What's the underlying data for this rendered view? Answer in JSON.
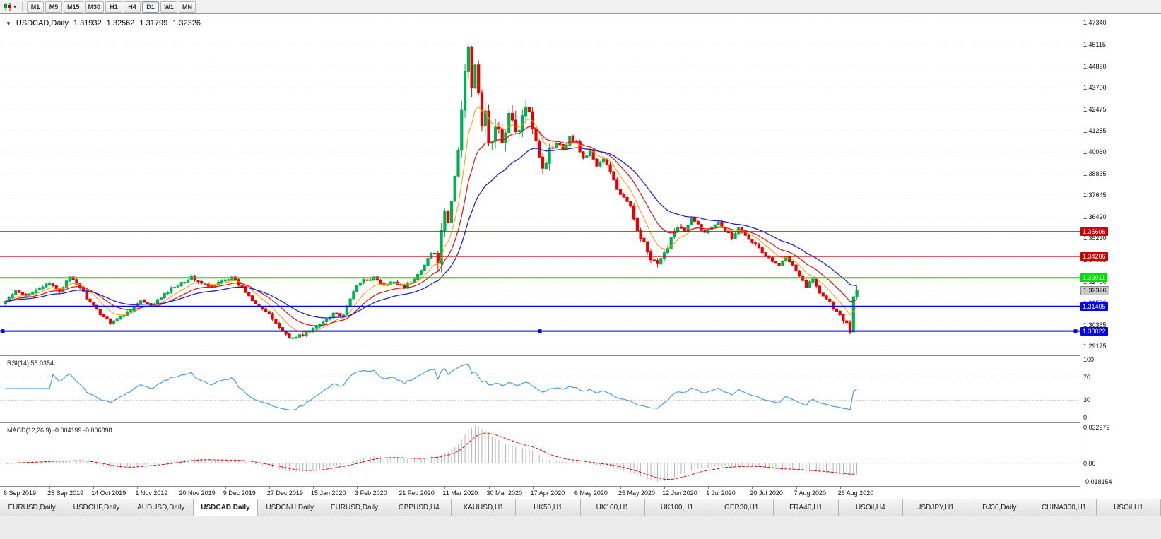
{
  "toolbar": {
    "timeframes": [
      "M1",
      "M5",
      "M15",
      "M30",
      "H1",
      "H4",
      "D1",
      "W1",
      "MN"
    ],
    "active_timeframe": "D1"
  },
  "icons": {
    "chart_type": "candlestick-chart",
    "dropdown": "▾",
    "collapse": "▼"
  },
  "header": {
    "symbol_period": "USDCAD,Daily",
    "open": "1.31932",
    "high": "1.32562",
    "low": "1.31799",
    "close": "1.32326"
  },
  "price_scale": {
    "labels": [
      "1.47340",
      "1.46115",
      "1.44890",
      "1.43700",
      "1.42475",
      "1.41285",
      "1.40060",
      "1.38835",
      "1.37645",
      "1.36420",
      "1.35230",
      "1.34005",
      "1.32780",
      "1.31590",
      "1.30365",
      "1.29175"
    ],
    "current_price": "1.32326",
    "current_badge_color": "#c9c9c9"
  },
  "indicators": {
    "rsi": {
      "label": "RSI(14) 55.0354",
      "period": 14,
      "value": 55.0354,
      "levels": [
        100,
        70,
        30,
        0
      ],
      "line_color": "#4a9ee0"
    },
    "macd": {
      "label": "MACD(12,26,9) -0.004199 -0.006898",
      "params": [
        12,
        26,
        9
      ],
      "macd_value": -0.004199,
      "signal_value": -0.006898,
      "scale_top": "0.032972",
      "scale_zero": "0.00",
      "scale_bottom": "-0.018154",
      "histogram_color": "#b2b2b2",
      "signal_color": "#e00000"
    }
  },
  "date_axis": [
    "6 Sep 2019",
    "25 Sep 2019",
    "14 Oct 2019",
    "1 Nov 2019",
    "20 Nov 2019",
    "9 Dec 2019",
    "27 Dec 2019",
    "15 Jan 2020",
    "3 Feb 2020",
    "21 Feb 2020",
    "11 Mar 2020",
    "30 Mar 2020",
    "17 Apr 2020",
    "6 May 2020",
    "25 May 2020",
    "12 Jun 2020",
    "1 Jul 2020",
    "20 Jul 2020",
    "7 Aug 2020",
    "26 Aug 2020"
  ],
  "tabs": {
    "items": [
      "EURUSD,Daily",
      "USDCHF,Daily",
      "AUDUSD,Daily",
      "USDCAD,Daily",
      "USDCNH,Daily",
      "EURUSD,Daily",
      "GBPUSD,H4",
      "XAUUSD,H1",
      "HK50,H1",
      "UK100,H1",
      "UK100,H1",
      "GER30,H1",
      "FRA40,H1",
      "USOil,H4",
      "USDJPY,H1",
      "DJ30,Daily",
      "CHINA300,H1",
      "USOil,H1"
    ],
    "active_index": 3
  },
  "chart_data": {
    "type": "candlestick",
    "symbol": "USDCAD",
    "period": "Daily",
    "ylim": [
      1.287,
      1.4777
    ],
    "num_candles": 253,
    "current_ohlc": {
      "open": 1.31932,
      "high": 1.32562,
      "low": 1.31799,
      "close": 1.32326
    },
    "up_color": "#00b050",
    "down_color": "#e80000",
    "ma_lines": [
      {
        "name": "MA fast",
        "period": 8,
        "color": "#ff9900",
        "width": 1
      },
      {
        "name": "MA medium",
        "period": 16,
        "color": "#dd1111",
        "width": 1.2
      },
      {
        "name": "MA slow",
        "period": 30,
        "color": "#2222cc",
        "width": 1.3
      }
    ],
    "hlines": [
      {
        "price": 1.35606,
        "label": "1.35606",
        "color": "#cc0000",
        "width": 1,
        "selected": false
      },
      {
        "price": 1.34206,
        "label": "1.34206",
        "color": "#cc0000",
        "width": 1,
        "selected": false
      },
      {
        "price": 1.33011,
        "label": "1.33011",
        "color": "#00dd00",
        "width": 2,
        "selected": false
      },
      {
        "price": 1.31405,
        "label": "1.31405",
        "color": "#0000ff",
        "width": 2,
        "selected": false
      },
      {
        "price": 1.30022,
        "label": "1.30022",
        "color": "#0000ff",
        "width": 2,
        "selected": true
      }
    ],
    "base_volatility": 0.0019,
    "volatility_zones": [
      [
        128,
        163,
        0.009
      ],
      [
        178,
        200,
        0.0035
      ],
      [
        235,
        252,
        0.0028
      ]
    ],
    "close_anchors": [
      [
        0,
        1.317
      ],
      [
        3,
        1.3225
      ],
      [
        6,
        1.3195
      ],
      [
        9,
        1.324
      ],
      [
        13,
        1.3265
      ],
      [
        16,
        1.323
      ],
      [
        19,
        1.33
      ],
      [
        22,
        1.325
      ],
      [
        25,
        1.316
      ],
      [
        28,
        1.31
      ],
      [
        31,
        1.3055
      ],
      [
        34,
        1.308
      ],
      [
        37,
        1.3125
      ],
      [
        40,
        1.317
      ],
      [
        43,
        1.314
      ],
      [
        46,
        1.319
      ],
      [
        49,
        1.324
      ],
      [
        52,
        1.3275
      ],
      [
        55,
        1.3305
      ],
      [
        58,
        1.327
      ],
      [
        61,
        1.3245
      ],
      [
        64,
        1.329
      ],
      [
        67,
        1.33
      ],
      [
        70,
        1.3245
      ],
      [
        73,
        1.318
      ],
      [
        76,
        1.313
      ],
      [
        79,
        1.307
      ],
      [
        82,
        1.3
      ],
      [
        85,
        1.296
      ],
      [
        88,
        1.2985
      ],
      [
        91,
        1.301
      ],
      [
        94,
        1.3055
      ],
      [
        97,
        1.3105
      ],
      [
        100,
        1.3085
      ],
      [
        103,
        1.323
      ],
      [
        106,
        1.329
      ],
      [
        109,
        1.33
      ],
      [
        112,
        1.3255
      ],
      [
        115,
        1.328
      ],
      [
        118,
        1.325
      ],
      [
        121,
        1.329
      ],
      [
        124,
        1.338
      ],
      [
        126,
        1.344
      ],
      [
        128,
        1.342
      ],
      [
        130,
        1.364
      ],
      [
        131,
        1.36
      ],
      [
        132,
        1.372
      ],
      [
        133,
        1.387
      ],
      [
        134,
        1.402
      ],
      [
        135,
        1.424
      ],
      [
        136,
        1.448
      ],
      [
        137,
        1.462
      ],
      [
        138,
        1.44
      ],
      [
        139,
        1.451
      ],
      [
        140,
        1.43
      ],
      [
        141,
        1.414
      ],
      [
        142,
        1.426
      ],
      [
        143,
        1.404
      ],
      [
        145,
        1.413
      ],
      [
        147,
        1.408
      ],
      [
        149,
        1.422
      ],
      [
        151,
        1.411
      ],
      [
        153,
        1.419
      ],
      [
        155,
        1.426
      ],
      [
        157,
        1.409
      ],
      [
        159,
        1.392
      ],
      [
        161,
        1.401
      ],
      [
        163,
        1.409
      ],
      [
        165,
        1.402
      ],
      [
        167,
        1.409
      ],
      [
        169,
        1.406
      ],
      [
        171,
        1.397
      ],
      [
        173,
        1.401
      ],
      [
        175,
        1.393
      ],
      [
        177,
        1.397
      ],
      [
        179,
        1.389
      ],
      [
        181,
        1.38
      ],
      [
        183,
        1.375
      ],
      [
        185,
        1.369
      ],
      [
        187,
        1.358
      ],
      [
        189,
        1.349
      ],
      [
        191,
        1.34
      ],
      [
        193,
        1.337
      ],
      [
        195,
        1.343
      ],
      [
        197,
        1.353
      ],
      [
        199,
        1.36
      ],
      [
        201,
        1.356
      ],
      [
        203,
        1.363
      ],
      [
        205,
        1.36
      ],
      [
        207,
        1.355
      ],
      [
        209,
        1.359
      ],
      [
        211,
        1.362
      ],
      [
        213,
        1.357
      ],
      [
        215,
        1.353
      ],
      [
        217,
        1.358
      ],
      [
        219,
        1.3545
      ],
      [
        221,
        1.3505
      ],
      [
        223,
        1.3465
      ],
      [
        225,
        1.3425
      ],
      [
        227,
        1.3395
      ],
      [
        229,
        1.3365
      ],
      [
        231,
        1.342
      ],
      [
        233,
        1.338
      ],
      [
        235,
        1.3315
      ],
      [
        237,
        1.3255
      ],
      [
        239,
        1.329
      ],
      [
        241,
        1.3225
      ],
      [
        243,
        1.3185
      ],
      [
        245,
        1.3135
      ],
      [
        247,
        1.3085
      ],
      [
        249,
        1.304
      ],
      [
        250,
        1.3005
      ],
      [
        251,
        1.319
      ],
      [
        252,
        1.32326
      ]
    ]
  }
}
